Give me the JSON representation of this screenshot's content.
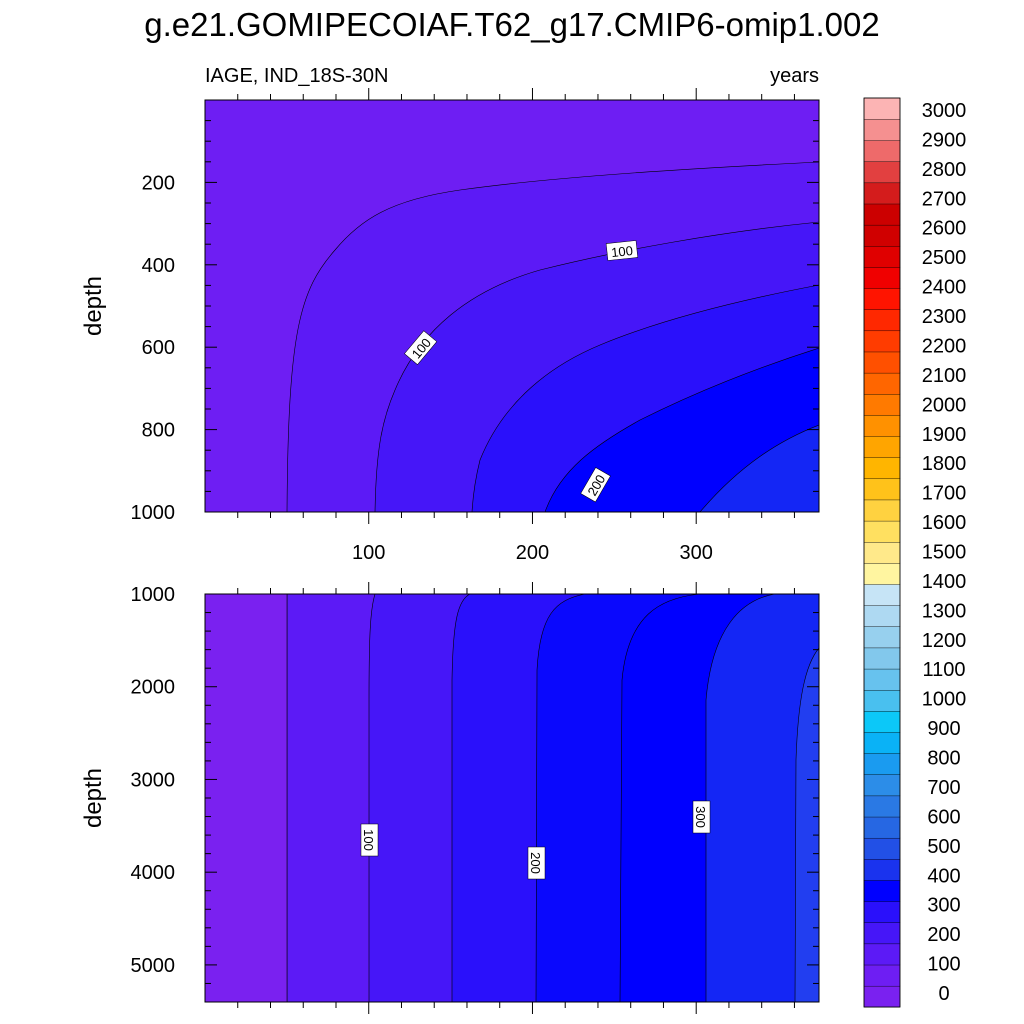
{
  "chart_data": {
    "type": "contour",
    "title": "g.e21.GOMIPECOIAF.T62_g17.CMIP6-omip1.002",
    "left_subtitle": "IAGE, IND_18S-30N",
    "right_subtitle": "years",
    "xlabel": "",
    "ylabel": "depth",
    "x_ticks": [
      100,
      200,
      300
    ],
    "x_range": [
      0,
      375
    ],
    "top_panel": {
      "y_range": [
        0,
        1000
      ],
      "y_ticks": [
        200,
        400,
        600,
        800,
        1000
      ],
      "contour_labels": [
        "100",
        "100",
        "200"
      ]
    },
    "bottom_panel": {
      "y_range": [
        1000,
        5400
      ],
      "y_ticks": [
        1000,
        2000,
        3000,
        4000,
        5000
      ],
      "contour_labels": [
        "100",
        "200",
        "300"
      ]
    },
    "colorbar": {
      "levels": [
        0,
        100,
        200,
        300,
        400,
        500,
        600,
        700,
        800,
        900,
        1000,
        1100,
        1200,
        1300,
        1400,
        1500,
        1600,
        1700,
        1800,
        1900,
        2000,
        2100,
        2200,
        2300,
        2400,
        2500,
        2600,
        2700,
        2800,
        2900,
        3000
      ],
      "colors": [
        "#7a21f0",
        "#6e1ef3",
        "#5c1af6",
        "#4616f8",
        "#2a10fb",
        "#0000ff",
        "#1a33ee",
        "#2250e6",
        "#2667e3",
        "#2a79e4",
        "#2c8de8",
        "#1a9bf0",
        "#0ab2f6",
        "#0cc8f8",
        "#49c0ef",
        "#67c2ee",
        "#82c8ec",
        "#97d0ee",
        "#aed9f2",
        "#c6e4f6",
        "#fff5a0",
        "#ffe98a",
        "#ffe060",
        "#ffd240",
        "#ffc21a",
        "#ffb500",
        "#ffa500",
        "#ff9100",
        "#ff7a00",
        "#ff6600",
        "#ff5000",
        "#ff3c00",
        "#ff2800",
        "#ff1400",
        "#f00000",
        "#e00000",
        "#d00000",
        "#cc0000",
        "#d41c1c",
        "#e24040",
        "#ee6a6a",
        "#f59090",
        "#fcb4b4"
      ]
    },
    "colors": {
      "band0": "#7a21f0",
      "band1": "#6e1ef3",
      "band2": "#5c1af6",
      "band3": "#4616f8",
      "band4": "#2a10fb",
      "band5": "#0000ff",
      "band6": "#1426f5",
      "band7": "#223ef0"
    }
  }
}
